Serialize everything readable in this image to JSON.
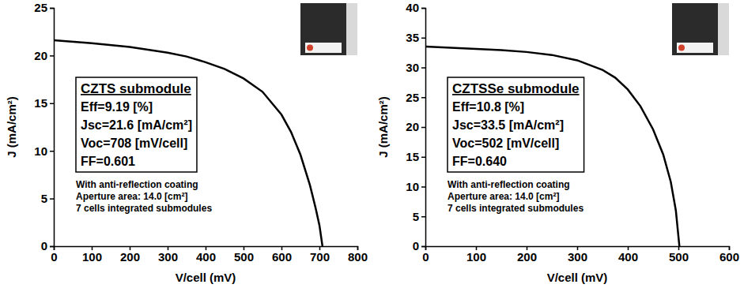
{
  "chart_data": [
    {
      "type": "line",
      "x_label": "V/cell (mV)",
      "y_label": "J (mA/cm²)",
      "annotations": [
        "CZTS submodule",
        "Eff=9.19 [%]",
        "Jsc=21.6 [mA/cm²]",
        "Voc=708 [mV/cell]",
        "FF=0.601",
        "With anti-reflection coating",
        "Aperture area: 14.0 [cm²]",
        "7 cells integrated submodules"
      ],
      "x": [
        0,
        100,
        200,
        300,
        350,
        400,
        450,
        500,
        550,
        600,
        625,
        650,
        675,
        690,
        700,
        708
      ],
      "values": [
        21.6,
        21.3,
        20.9,
        20.3,
        19.9,
        19.3,
        18.6,
        17.6,
        16.2,
        13.8,
        12.0,
        9.6,
        6.4,
        4.0,
        2.2,
        0
      ],
      "color": "#000000",
      "xlim": [
        0,
        800
      ],
      "xticks": [
        0,
        100,
        200,
        300,
        400,
        500,
        600,
        700,
        800
      ],
      "ylim": [
        0,
        25
      ],
      "yticks": [
        0,
        5,
        10,
        15,
        20,
        25
      ],
      "grid": false
    },
    {
      "type": "line",
      "x_label": "V/cell (mV)",
      "y_label": "J (mA/cm²)",
      "annotations": [
        "CZTSSe submodule",
        "Eff=10.8 [%]",
        "Jsc=33.5 [mA/cm²]",
        "Voc=502 [mV/cell]",
        "FF=0.640",
        "With anti-reflection coating",
        "Aperture area: 14.0 [cm²]",
        "7 cells integrated submodules"
      ],
      "x": [
        0,
        50,
        100,
        150,
        200,
        250,
        300,
        350,
        375,
        400,
        425,
        450,
        470,
        485,
        495,
        502
      ],
      "values": [
        33.5,
        33.3,
        33.1,
        32.9,
        32.6,
        32.1,
        31.2,
        29.6,
        28.3,
        26.3,
        23.5,
        19.6,
        15.4,
        10.8,
        6.0,
        0
      ],
      "color": "#000000",
      "xlim": [
        0,
        600
      ],
      "xticks": [
        0,
        100,
        200,
        300,
        400,
        500,
        600
      ],
      "ylim": [
        0,
        40
      ],
      "yticks": [
        0,
        5,
        10,
        15,
        20,
        25,
        30,
        35,
        40
      ],
      "grid": false
    }
  ]
}
